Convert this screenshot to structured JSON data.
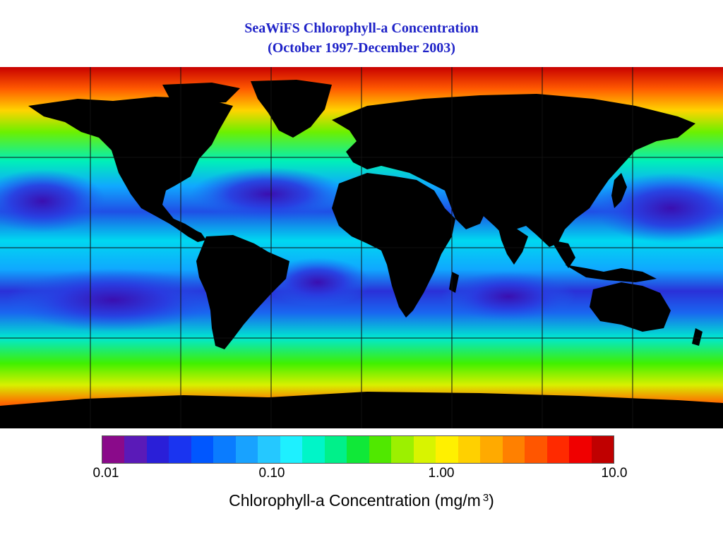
{
  "title": {
    "line1": "SeaWiFS Chlorophyll-a Concentration",
    "line2": "(October 1997-December 2003)"
  },
  "map": {
    "land_color": "#000000",
    "grid_color": "#111111",
    "description_colors": {
      "very_low": "#3a0fb0",
      "low": "#1f4fe6",
      "mid_low": "#10b4ff",
      "mid": "#00f0c8",
      "mid_high": "#4df000",
      "high": "#ffd400",
      "very_high": "#ff3a00",
      "max": "#c80000"
    }
  },
  "colorbar": {
    "ticks": [
      "0.01",
      "0.10",
      "1.00",
      "10.0"
    ],
    "label_main": "Chlorophyll-a Concentration (mg/m",
    "label_sup": "3",
    "label_end": ")",
    "stops": [
      "#8a0a8a",
      "#5a1ab8",
      "#2a1fd8",
      "#1a34f0",
      "#0057ff",
      "#0a7cff",
      "#18a2ff",
      "#25c8ff",
      "#1ef0ff",
      "#00f5c8",
      "#00f08a",
      "#10e838",
      "#50e800",
      "#9cf000",
      "#d8f400",
      "#fff000",
      "#ffd000",
      "#ffaa00",
      "#ff8000",
      "#ff5600",
      "#ff2a00",
      "#f00000",
      "#c00000"
    ]
  }
}
